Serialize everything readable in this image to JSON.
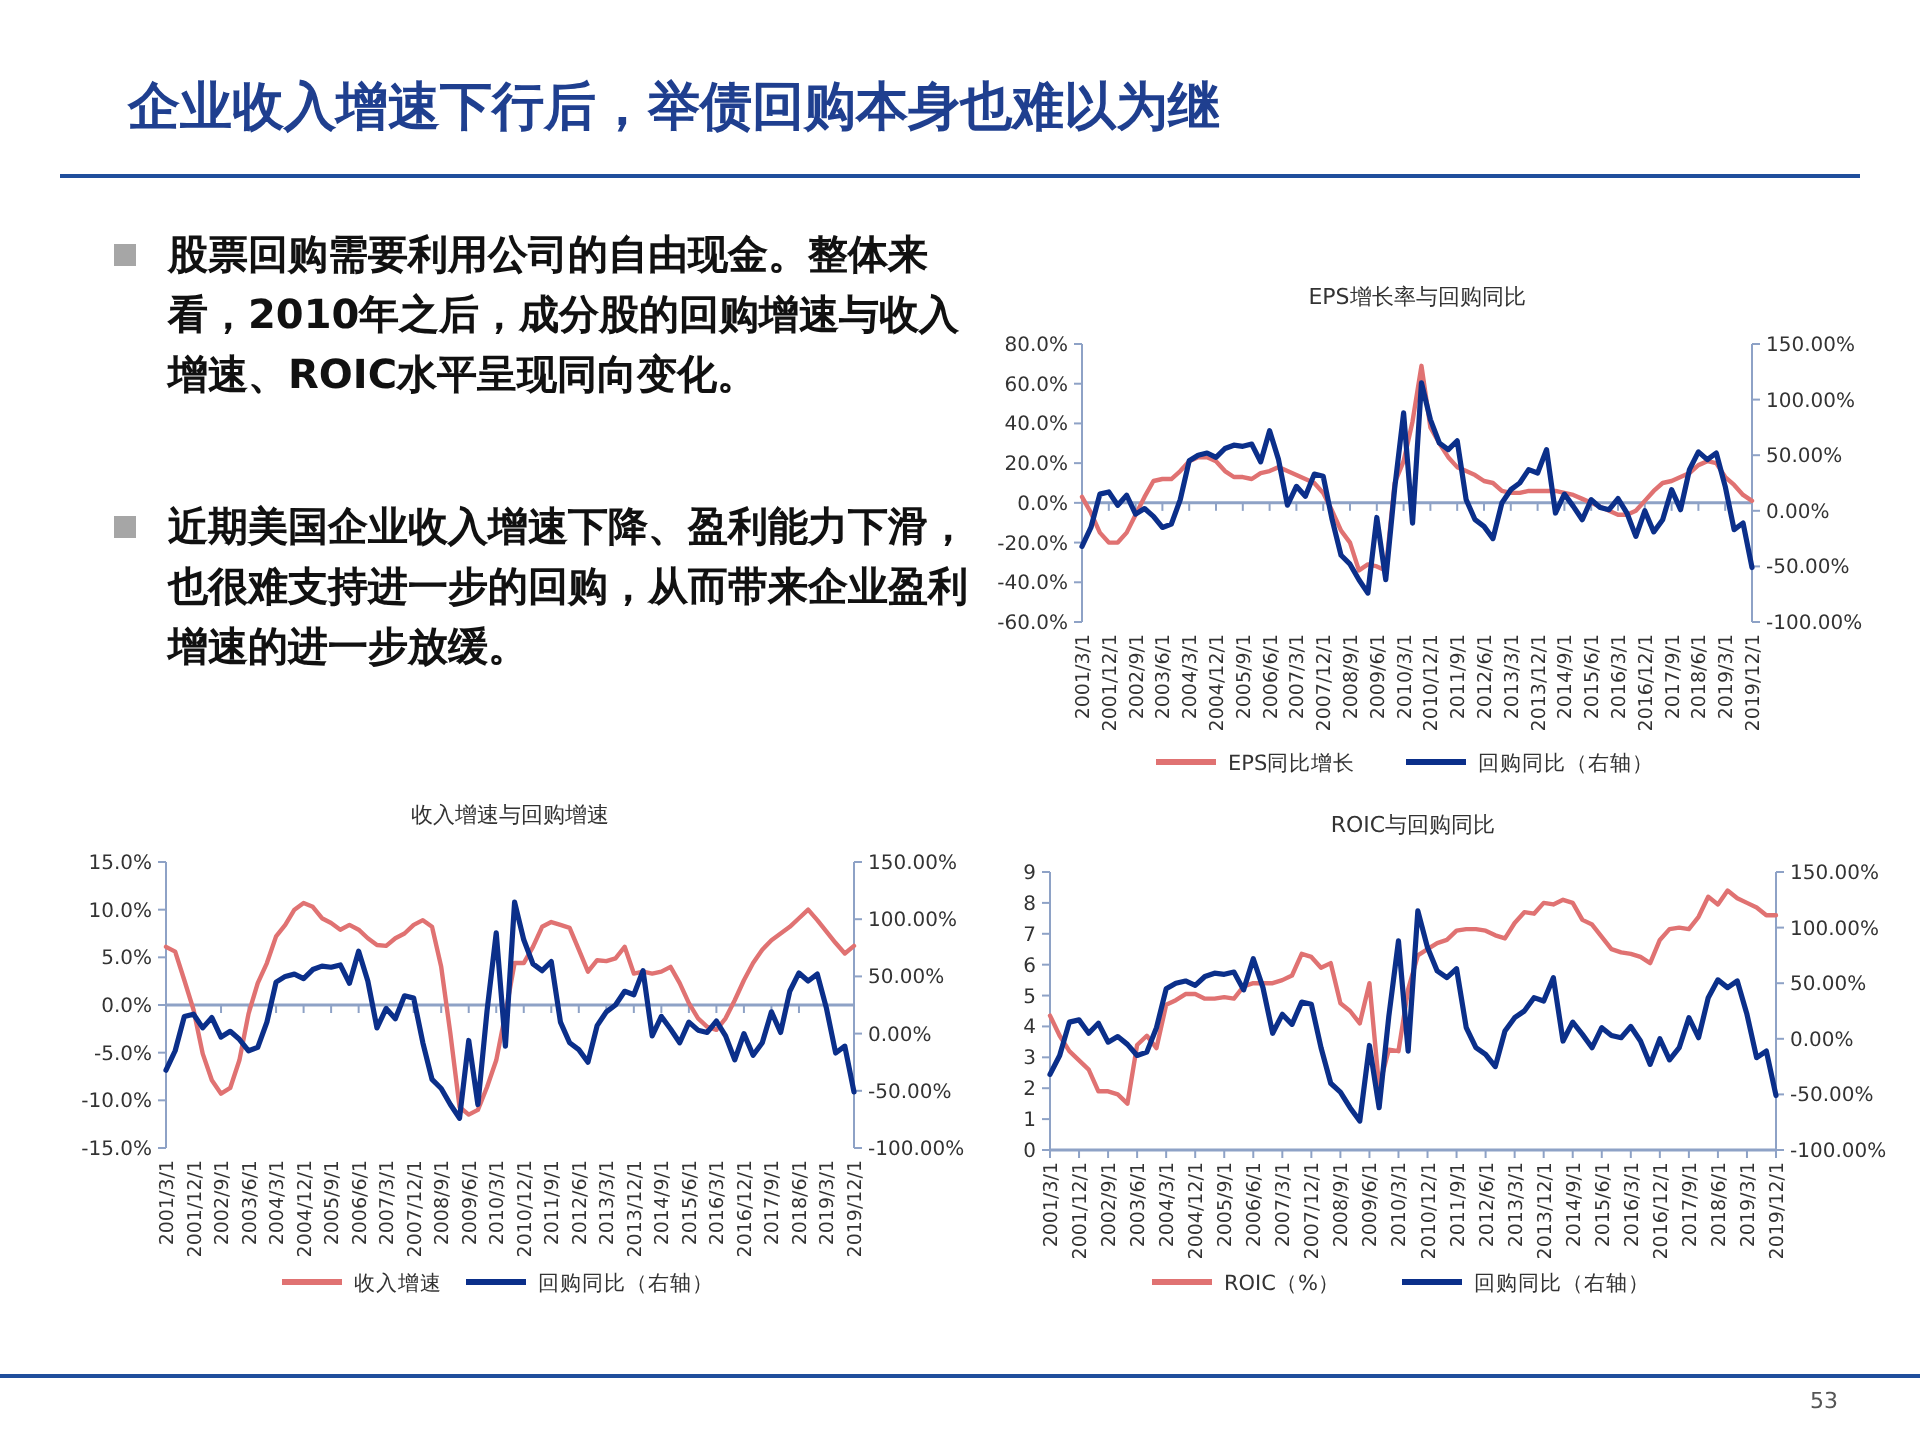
{
  "chart_data": [
    {
      "type": "other",
      "title": "企业收入增速下行后，举债回购本身也难以为继",
      "annotations": [
        "股票回购需要利用公司的自由现金。整体来看，2010年之后，成分股的回购增速与收入增速、ROIC水平呈现同向变化。",
        "近期美国企业收入增速下降、盈利能力下滑，也很难支持进一步的回购，从而带来企业盈利增速的进一步放缓。",
        "53"
      ]
    },
    {
      "type": "line",
      "title": "EPS增长率与回购同比",
      "legend": "bottom",
      "ref_lines": [
        {
          "axis": "y",
          "value": 0
        }
      ],
      "categories": [
        "2001/3/1",
        null,
        null,
        "2001/12/1",
        null,
        null,
        "2002/9/1",
        null,
        null,
        "2003/6/1",
        null,
        null,
        "2004/3/1",
        null,
        null,
        "2004/12/1",
        null,
        null,
        "2005/9/1",
        null,
        null,
        "2006/6/1",
        null,
        null,
        "2007/3/1",
        null,
        null,
        "2007/12/1",
        null,
        null,
        "2008/9/1",
        null,
        null,
        "2009/6/1",
        null,
        null,
        "2010/3/1",
        null,
        null,
        "2010/12/1",
        null,
        null,
        "2011/9/1",
        null,
        null,
        "2012/6/1",
        null,
        null,
        "2013/3/1",
        null,
        null,
        "2013/12/1",
        null,
        null,
        "2014/9/1",
        null,
        null,
        "2015/6/1",
        null,
        null,
        "2016/3/1",
        null,
        null,
        "2016/12/1",
        null,
        null,
        "2017/9/1",
        null,
        null,
        "2018/6/1",
        null,
        null,
        "2019/3/1",
        null,
        null,
        "2019/12/1"
      ],
      "ylim": [
        -60,
        80
      ],
      "yticks": [
        {
          "value": -60,
          "label": "-60.0%"
        },
        {
          "value": -40,
          "label": "-40.0%"
        },
        {
          "value": -20,
          "label": "-20.0%"
        },
        {
          "value": 0,
          "label": "0.0%"
        },
        {
          "value": 20,
          "label": "20.0%"
        },
        {
          "value": 40,
          "label": "40.0%"
        },
        {
          "value": 60,
          "label": "60.0%"
        },
        {
          "value": 80,
          "label": "80.0%"
        }
      ],
      "y2lim": [
        -100,
        150
      ],
      "y2ticks": [
        {
          "value": -100,
          "label": "-100.00%"
        },
        {
          "value": -50,
          "label": "-50.00%"
        },
        {
          "value": 0,
          "label": "0.00%"
        },
        {
          "value": 50,
          "label": "50.00%"
        },
        {
          "value": 100,
          "label": "100.00%"
        },
        {
          "value": 150,
          "label": "150.00%"
        }
      ],
      "series": [
        {
          "name": "EPS同比增长",
          "color": "#e07272",
          "values": [
            3,
            -5,
            -15,
            -20,
            -20,
            -15,
            -6,
            3,
            11,
            12,
            12,
            16,
            21,
            23,
            23,
            21,
            16,
            13,
            13,
            12,
            15,
            16,
            18,
            16,
            14,
            12,
            10,
            5,
            -4,
            -14,
            -20,
            -34,
            -31,
            -32,
            -34,
            10,
            21,
            41,
            69,
            38,
            30,
            23,
            18,
            16,
            14,
            11,
            10,
            6,
            5,
            5,
            6,
            6,
            6,
            6,
            5,
            4,
            2,
            0,
            -2,
            -4,
            -6,
            -6,
            -4,
            1,
            6,
            10,
            11,
            13,
            15,
            19,
            21,
            20,
            13,
            9,
            4,
            1
          ]
        },
        {
          "name": "回购同比（右轴）",
          "color": "#0b2f8a",
          "axis": "y2",
          "values": [
            -32,
            -15,
            15,
            17,
            5,
            14,
            -3,
            2,
            -5,
            -15,
            -12,
            10,
            45,
            50,
            52,
            48,
            56,
            59,
            58,
            60,
            44,
            72,
            46,
            5,
            22,
            13,
            33,
            31,
            -8,
            -40,
            -48,
            -62,
            -74,
            -6,
            -62,
            20,
            88,
            -11,
            115,
            82,
            61,
            55,
            63,
            10,
            -8,
            -14,
            -25,
            7,
            19,
            25,
            37,
            34,
            55,
            -2,
            15,
            4,
            -8,
            10,
            3,
            1,
            11,
            -2,
            -23,
            0,
            -19,
            -8,
            19,
            1,
            37,
            53,
            46,
            52,
            22,
            -17,
            -11,
            -51
          ]
        }
      ]
    },
    {
      "type": "line",
      "title": "收入增速与回购增速",
      "legend": "bottom",
      "ref_lines": [
        {
          "axis": "y",
          "value": 0
        }
      ],
      "categories": [
        "2001/3/1",
        null,
        null,
        "2001/12/1",
        null,
        null,
        "2002/9/1",
        null,
        null,
        "2003/6/1",
        null,
        null,
        "2004/3/1",
        null,
        null,
        "2004/12/1",
        null,
        null,
        "2005/9/1",
        null,
        null,
        "2006/6/1",
        null,
        null,
        "2007/3/1",
        null,
        null,
        "2007/12/1",
        null,
        null,
        "2008/9/1",
        null,
        null,
        "2009/6/1",
        null,
        null,
        "2010/3/1",
        null,
        null,
        "2010/12/1",
        null,
        null,
        "2011/9/1",
        null,
        null,
        "2012/6/1",
        null,
        null,
        "2013/3/1",
        null,
        null,
        "2013/12/1",
        null,
        null,
        "2014/9/1",
        null,
        null,
        "2015/6/1",
        null,
        null,
        "2016/3/1",
        null,
        null,
        "2016/12/1",
        null,
        null,
        "2017/9/1",
        null,
        null,
        "2018/6/1",
        null,
        null,
        "2019/3/1",
        null,
        null,
        "2019/12/1"
      ],
      "ylim": [
        -15,
        15
      ],
      "yticks": [
        {
          "value": -15,
          "label": "-15.0%"
        },
        {
          "value": -10,
          "label": "-10.0%"
        },
        {
          "value": -5,
          "label": "-5.0%"
        },
        {
          "value": 0,
          "label": "0.0%"
        },
        {
          "value": 5,
          "label": "5.0%"
        },
        {
          "value": 10,
          "label": "10.0%"
        },
        {
          "value": 15,
          "label": "15.0%"
        }
      ],
      "y2lim": [
        -100,
        150
      ],
      "y2ticks": [
        {
          "value": -100,
          "label": "-100.00%"
        },
        {
          "value": -50,
          "label": "-50.00%"
        },
        {
          "value": 0,
          "label": "0.00%"
        },
        {
          "value": 50,
          "label": "50.00%"
        },
        {
          "value": 100,
          "label": "100.00%"
        },
        {
          "value": 150,
          "label": "150.00%"
        }
      ],
      "series": [
        {
          "name": "收入增速",
          "color": "#e07272",
          "values": [
            6.1,
            5.6,
            2.6,
            -0.5,
            -5.1,
            -7.9,
            -9.3,
            -8.7,
            -5.8,
            -0.9,
            2.3,
            4.4,
            7.2,
            8.4,
            10.0,
            10.7,
            10.3,
            9.1,
            8.6,
            7.9,
            8.4,
            7.9,
            7.0,
            6.3,
            6.2,
            7.0,
            7.5,
            8.4,
            8.9,
            8.2,
            4.0,
            -3.0,
            -10.7,
            -11.5,
            -11.0,
            -8.6,
            -5.8,
            -0.9,
            4.4,
            4.4,
            6.1,
            8.2,
            8.7,
            8.4,
            8.1,
            5.8,
            3.5,
            4.7,
            4.6,
            4.9,
            6.1,
            3.3,
            3.5,
            3.3,
            3.5,
            4.0,
            2.3,
            0.2,
            -1.4,
            -2.3,
            -2.6,
            -1.4,
            0.5,
            2.6,
            4.4,
            5.8,
            6.8,
            7.5,
            8.2,
            9.1,
            10.0,
            8.9,
            7.7,
            6.5,
            5.4,
            6.2
          ]
        },
        {
          "name": "回购同比（右轴）",
          "color": "#0b2f8a",
          "axis": "y2",
          "values": [
            -32,
            -15,
            15,
            17,
            5,
            14,
            -3,
            2,
            -5,
            -15,
            -12,
            10,
            45,
            50,
            52,
            48,
            56,
            59,
            58,
            60,
            44,
            72,
            46,
            5,
            22,
            13,
            33,
            31,
            -8,
            -40,
            -48,
            -62,
            -74,
            -6,
            -62,
            20,
            88,
            -11,
            115,
            82,
            61,
            55,
            63,
            10,
            -8,
            -14,
            -25,
            7,
            19,
            25,
            37,
            34,
            55,
            -2,
            15,
            4,
            -8,
            10,
            3,
            1,
            11,
            -2,
            -23,
            0,
            -19,
            -8,
            19,
            1,
            37,
            53,
            46,
            52,
            22,
            -17,
            -11,
            -51
          ]
        }
      ]
    },
    {
      "type": "line",
      "title": "ROIC与回购同比",
      "legend": "bottom",
      "categories": [
        "2001/3/1",
        null,
        null,
        "2001/12/1",
        null,
        null,
        "2002/9/1",
        null,
        null,
        "2003/6/1",
        null,
        null,
        "2004/3/1",
        null,
        null,
        "2004/12/1",
        null,
        null,
        "2005/9/1",
        null,
        null,
        "2006/6/1",
        null,
        null,
        "2007/3/1",
        null,
        null,
        "2007/12/1",
        null,
        null,
        "2008/9/1",
        null,
        null,
        "2009/6/1",
        null,
        null,
        "2010/3/1",
        null,
        null,
        "2010/12/1",
        null,
        null,
        "2011/9/1",
        null,
        null,
        "2012/6/1",
        null,
        null,
        "2013/3/1",
        null,
        null,
        "2013/12/1",
        null,
        null,
        "2014/9/1",
        null,
        null,
        "2015/6/1",
        null,
        null,
        "2016/3/1",
        null,
        null,
        "2016/12/1",
        null,
        null,
        "2017/9/1",
        null,
        null,
        "2018/6/1",
        null,
        null,
        "2019/3/1",
        null,
        null,
        "2019/12/1"
      ],
      "ylim": [
        0,
        9
      ],
      "yticks": [
        0,
        1,
        2,
        3,
        4,
        5,
        6,
        7,
        8,
        9
      ],
      "y2lim": [
        -100,
        150
      ],
      "y2ticks": [
        {
          "value": -100,
          "label": "-100.00%"
        },
        {
          "value": -50,
          "label": "-50.00%"
        },
        {
          "value": 0,
          "label": "0.00%"
        },
        {
          "value": 50,
          "label": "50.00%"
        },
        {
          "value": 100,
          "label": "100.00%"
        },
        {
          "value": 150,
          "label": "150.00%"
        }
      ],
      "series": [
        {
          "name": "ROIC（%）",
          "color": "#e07272",
          "values": [
            4.35,
            3.7,
            3.2,
            2.9,
            2.6,
            1.9,
            1.9,
            1.8,
            1.5,
            3.4,
            3.7,
            3.3,
            4.7,
            4.85,
            5.05,
            5.05,
            4.9,
            4.9,
            4.95,
            4.9,
            5.3,
            5.4,
            5.4,
            5.4,
            5.5,
            5.65,
            6.35,
            6.25,
            5.9,
            6.05,
            4.75,
            4.5,
            4.1,
            5.4,
            2.05,
            3.25,
            3.2,
            5.2,
            6.3,
            6.5,
            6.7,
            6.8,
            7.1,
            7.15,
            7.15,
            7.1,
            6.95,
            6.85,
            7.35,
            7.7,
            7.65,
            8.0,
            7.95,
            8.1,
            8.0,
            7.45,
            7.3,
            6.9,
            6.5,
            6.4,
            6.35,
            6.25,
            6.05,
            6.8,
            7.15,
            7.2,
            7.15,
            7.55,
            8.2,
            7.95,
            8.4,
            8.15,
            8.0,
            7.85,
            7.6,
            7.6
          ]
        },
        {
          "name": "回购同比（右轴）",
          "color": "#0b2f8a",
          "axis": "y2",
          "values": [
            -32,
            -15,
            15,
            17,
            5,
            14,
            -3,
            2,
            -5,
            -15,
            -12,
            10,
            45,
            50,
            52,
            48,
            56,
            59,
            58,
            60,
            44,
            72,
            46,
            5,
            22,
            13,
            33,
            31,
            -8,
            -40,
            -48,
            -62,
            -74,
            -6,
            -62,
            20,
            88,
            -11,
            115,
            82,
            61,
            55,
            63,
            10,
            -8,
            -14,
            -25,
            7,
            19,
            25,
            37,
            34,
            55,
            -2,
            15,
            4,
            -8,
            10,
            3,
            1,
            11,
            -2,
            -23,
            0,
            -19,
            -8,
            19,
            1,
            37,
            53,
            46,
            52,
            22,
            -17,
            -11,
            -51
          ]
        }
      ]
    }
  ]
}
